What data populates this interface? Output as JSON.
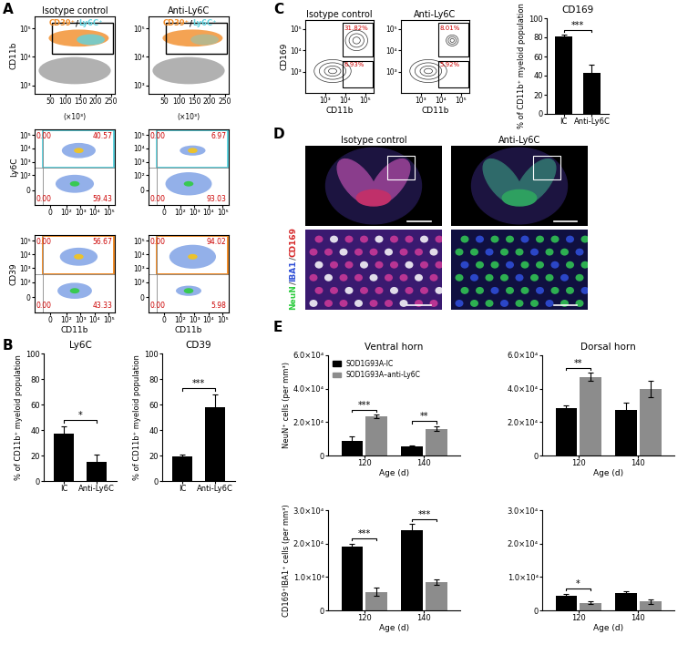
{
  "flow_cytometry": {
    "panel_label": "A",
    "rows": [
      {
        "ylabel": "CD11b",
        "log": "y",
        "xlim": [
          0,
          262144
        ],
        "xticks": [
          {
            "value": 50000,
            "label": "50"
          },
          {
            "value": 100000,
            "label": "100"
          },
          {
            "value": 150000,
            "label": "150"
          },
          {
            "value": 200000,
            "label": "200"
          },
          {
            "value": 250000,
            "label": "250"
          }
        ],
        "x_unit": "(×10³)",
        "ylim": [
          500,
          262144
        ],
        "yticks": [
          {
            "value": 1000,
            "label": "10³"
          },
          {
            "value": 10000,
            "label": "10⁴"
          },
          {
            "value": 100000,
            "label": "10⁵"
          }
        ],
        "gate_legend": [
          {
            "text": "CD39⁺",
            "color": "#f28c28"
          },
          {
            "text": "/",
            "color": "#000000"
          },
          {
            "text": "Ly6C⁺",
            "color": "#5fd3e0"
          }
        ],
        "plots": [
          {
            "title": "Isotype control"
          },
          {
            "title": "Anti-Ly6C"
          }
        ]
      },
      {
        "ylabel": "Ly6C",
        "log": true,
        "xlim": [
          -100,
          262144
        ],
        "xticks": [
          0,
          {
            "value": 100,
            "label": "10²"
          },
          {
            "value": 1000,
            "label": "10³"
          },
          {
            "value": 10000,
            "label": "10⁴"
          },
          {
            "value": 100000,
            "label": "10⁵"
          }
        ],
        "ylim": [
          -100,
          262144
        ],
        "yticks": [
          0,
          {
            "value": 100,
            "label": "10²"
          },
          {
            "value": 1000,
            "label": "10³"
          },
          {
            "value": 10000,
            "label": "10⁴"
          },
          {
            "value": 100000,
            "label": "10⁵"
          }
        ],
        "gate_color": "#5fd3e0",
        "plots": [
          {
            "quadrants": [
              "0.00",
              "40.57",
              "0.00",
              "59.43"
            ]
          },
          {
            "quadrants": [
              "0.00",
              "6.97",
              "0.00",
              "93.03"
            ]
          }
        ]
      },
      {
        "ylabel": "CD39",
        "xlabel": "CD11b",
        "log": true,
        "xlim": [
          -100,
          262144
        ],
        "xticks": [
          0,
          {
            "value": 100,
            "label": "10²"
          },
          {
            "value": 1000,
            "label": "10³"
          },
          {
            "value": 10000,
            "label": "10⁴"
          },
          {
            "value": 100000,
            "label": "10⁵"
          }
        ],
        "ylim": [
          -100,
          262144
        ],
        "yticks": [
          0,
          {
            "value": 100,
            "label": "10²"
          },
          {
            "value": 1000,
            "label": "10³"
          },
          {
            "value": 10000,
            "label": "10⁴"
          },
          {
            "value": 100000,
            "label": "10⁵"
          }
        ],
        "gate_color": "#f28c28",
        "plots": [
          {
            "quadrants": [
              "0.00",
              "56.67",
              "0.00",
              "43.33"
            ]
          },
          {
            "quadrants": [
              "0.00",
              "94.02",
              "0.00",
              "5.98"
            ]
          }
        ]
      }
    ]
  },
  "contour_plots": {
    "panel_label": "C",
    "ylabel": "CD169",
    "xlabel": "CD11b",
    "log": true,
    "xlim": [
      100,
      262144
    ],
    "xticks": [
      {
        "value": 1000,
        "label": "10³"
      },
      {
        "value": 10000,
        "label": "10⁴"
      },
      {
        "value": 100000,
        "label": "10⁵"
      }
    ],
    "ylim": [
      100,
      262144
    ],
    "yticks": [
      {
        "value": 1000,
        "label": "10³"
      },
      {
        "value": 10000,
        "label": "10⁴"
      },
      {
        "value": 100000,
        "label": "10⁵"
      }
    ],
    "plots": [
      {
        "title": "Isotype control",
        "gates": [
          "31.82%",
          "6.93%"
        ]
      },
      {
        "title": "Anti-Ly6C",
        "gates": [
          "8.01%",
          "5.92%"
        ]
      }
    ]
  },
  "images": {
    "panel_label": "D",
    "titles": [
      "Isotype control",
      "Anti-Ly6C"
    ],
    "stain_label": [
      {
        "text": "NeuN",
        "color": "#2ecc40"
      },
      {
        "text": "/",
        "color": "#555555"
      },
      {
        "text": "IBA1",
        "color": "#2f4fd6"
      },
      {
        "text": "/",
        "color": "#555555"
      },
      {
        "text": "CD169",
        "color": "#d62728"
      }
    ]
  },
  "chart_data": [
    {
      "panel_label": "B",
      "type": "bar",
      "title": "Ly6C",
      "categories": [
        "IC",
        "Anti-Ly6C"
      ],
      "values": [
        37,
        15
      ],
      "errors": [
        6,
        6
      ],
      "color": "#000000",
      "ylabel": "% of CD11b⁺ myeloid population",
      "ylim": [
        0,
        100
      ],
      "yticks": [
        0,
        20,
        40,
        60,
        80,
        100
      ],
      "significance": [
        {
          "from": "IC",
          "to": "Anti-Ly6C",
          "label": "*"
        }
      ]
    },
    {
      "type": "bar",
      "title": "CD39",
      "categories": [
        "IC",
        "Anti-Ly6C"
      ],
      "values": [
        19,
        58
      ],
      "errors": [
        2,
        10
      ],
      "color": "#000000",
      "ylabel": "% of CD11b⁺ myeloid population",
      "ylim": [
        0,
        100
      ],
      "yticks": [
        0,
        20,
        40,
        60,
        80,
        100
      ],
      "significance": [
        {
          "from": "IC",
          "to": "Anti-Ly6C",
          "label": "***"
        }
      ]
    },
    {
      "type": "bar",
      "title": "CD169",
      "categories": [
        "IC",
        "Anti-Ly6C"
      ],
      "values": [
        81,
        43
      ],
      "errors": [
        2,
        8
      ],
      "color": "#000000",
      "ylabel": "% of CD11b⁺ myeloid population",
      "ylim": [
        0,
        100
      ],
      "yticks": [
        0,
        20,
        40,
        60,
        80,
        100
      ],
      "significance": [
        {
          "from": "IC",
          "to": "Anti-Ly6C",
          "label": "***"
        }
      ]
    },
    {
      "panel_label": "E",
      "type": "bar",
      "title": "Ventral horn",
      "categories": [
        "120",
        "140"
      ],
      "series": [
        {
          "name": "SOD1G93A-IC",
          "color": "#000000",
          "values": [
            9000,
            5500
          ],
          "errors": [
            2500,
            700
          ]
        },
        {
          "name": "SOD1G93A–anti-Ly6C",
          "color": "#8c8c8c",
          "values": [
            23500,
            16000
          ],
          "errors": [
            1000,
            1500
          ]
        }
      ],
      "legend": "upper left",
      "xlabel": "Age (d)",
      "ylabel": "NeuN⁺ cells (per mm³)",
      "ylim": [
        0,
        60000
      ],
      "yticks": [
        0,
        {
          "value": 20000,
          "label": "2.0×10⁴"
        },
        {
          "value": 40000,
          "label": "4.0×10⁴"
        },
        {
          "value": 60000,
          "label": "6.0×10⁴"
        }
      ],
      "significance": [
        {
          "category": "120",
          "label": "***"
        },
        {
          "category": "140",
          "label": "**"
        }
      ]
    },
    {
      "type": "bar",
      "title": "Dorsal horn",
      "categories": [
        "120",
        "140"
      ],
      "series": [
        {
          "name": "SOD1G93A-IC",
          "color": "#000000",
          "values": [
            28500,
            27500
          ],
          "errors": [
            1500,
            4000
          ]
        },
        {
          "name": "SOD1G93A–anti-Ly6C",
          "color": "#8c8c8c",
          "values": [
            47000,
            40000
          ],
          "errors": [
            2500,
            5000
          ]
        }
      ],
      "xlabel": "Age (d)",
      "ylim": [
        0,
        60000
      ],
      "yticks": [
        0,
        {
          "value": 20000,
          "label": "2.0×10⁴"
        },
        {
          "value": 40000,
          "label": "4.0×10⁴"
        },
        {
          "value": 60000,
          "label": "6.0×10⁴"
        }
      ],
      "significance": [
        {
          "category": "120",
          "label": "**"
        }
      ]
    },
    {
      "type": "bar",
      "categories": [
        "120",
        "140"
      ],
      "series": [
        {
          "name": "SOD1G93A-IC",
          "color": "#000000",
          "values": [
            19000,
            24000
          ],
          "errors": [
            1000,
            1800
          ]
        },
        {
          "name": "SOD1G93A–anti-Ly6C",
          "color": "#8c8c8c",
          "values": [
            5500,
            8500
          ],
          "errors": [
            1200,
            800
          ]
        }
      ],
      "xlabel": "Age (d)",
      "ylabel": "CD169⁺IBA1⁺ cells (per mm³)",
      "ylim": [
        0,
        30000
      ],
      "yticks": [
        0,
        {
          "value": 10000,
          "label": "1.0×10⁴"
        },
        {
          "value": 20000,
          "label": "2.0×10⁴"
        },
        {
          "value": 30000,
          "label": "3.0×10⁴"
        }
      ],
      "significance": [
        {
          "category": "120",
          "label": "***"
        },
        {
          "category": "140",
          "label": "***"
        }
      ]
    },
    {
      "type": "bar",
      "categories": [
        "120",
        "140"
      ],
      "series": [
        {
          "name": "SOD1G93A-IC",
          "color": "#000000",
          "values": [
            4500,
            5200
          ],
          "errors": [
            500,
            600
          ]
        },
        {
          "name": "SOD1G93A–anti-Ly6C",
          "color": "#8c8c8c",
          "values": [
            2300,
            2600
          ],
          "errors": [
            300,
            600
          ]
        }
      ],
      "xlabel": "Age (d)",
      "ylim": [
        0,
        30000
      ],
      "yticks": [
        0,
        {
          "value": 10000,
          "label": "1.0×10⁴"
        },
        {
          "value": 20000,
          "label": "2.0×10⁴"
        },
        {
          "value": 30000,
          "label": "3.0×10⁴"
        }
      ],
      "significance": [
        {
          "category": "120",
          "label": "*"
        }
      ]
    }
  ]
}
